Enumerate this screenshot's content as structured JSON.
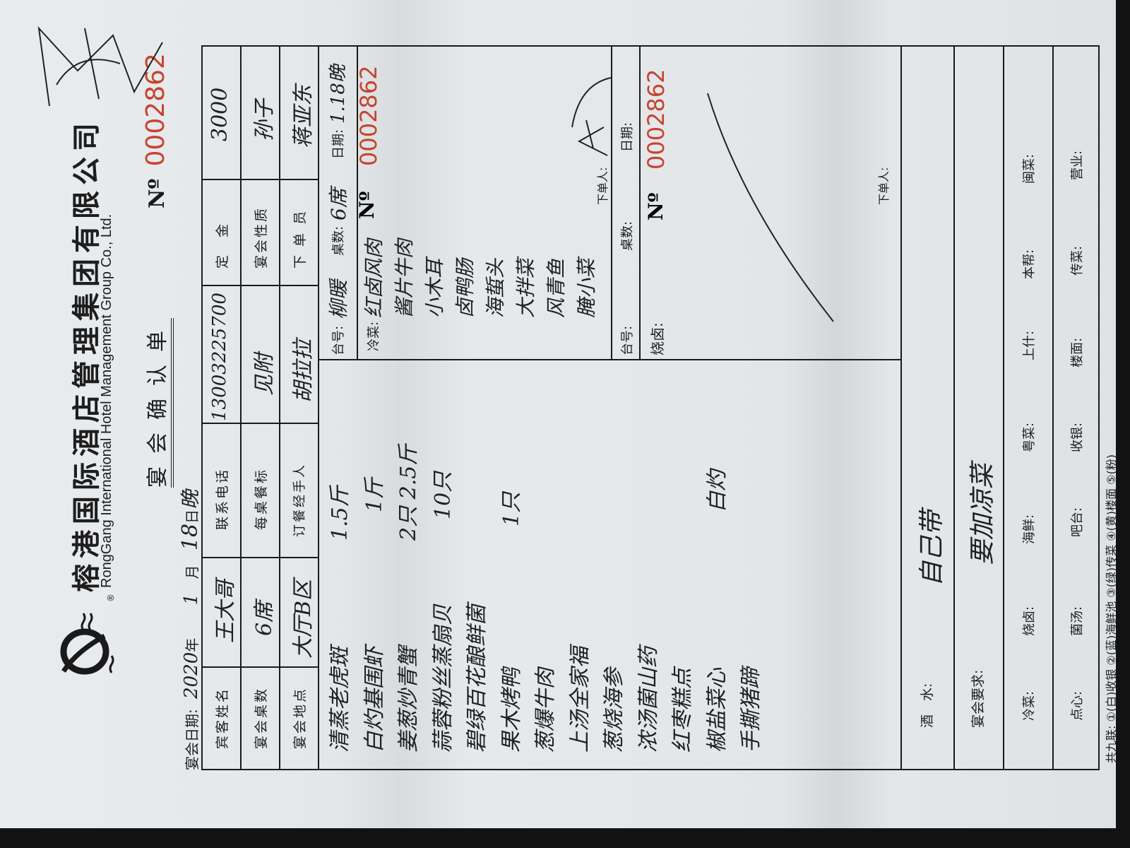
{
  "header": {
    "company_cn": "榕港国际酒店管理集团有限公司",
    "company_en": "RongGang International Hotel Management Group Co., Ltd.",
    "logo_mark": "®",
    "title": "宴会确认单",
    "no_label": "Nº",
    "serial": "0002862"
  },
  "date_line": {
    "label": "宴会日期:",
    "year": "2020",
    "year_unit": "年",
    "month": "1",
    "month_unit": "月",
    "day": "18",
    "day_unit": "日",
    "meal": "晚"
  },
  "info": {
    "guest_name_label": "宾客姓名",
    "guest_name": "王大哥",
    "phone_label": "联系电话",
    "phone": "13003225700",
    "deposit_label": "定　金",
    "deposit": "3000",
    "tables_label": "宴会桌数",
    "tables": "6席",
    "standard_label": "每桌餐标",
    "standard": "见附",
    "nature_label": "宴会性质",
    "nature": "孙子",
    "venue_label": "宴会地点",
    "venue": "大厅B区",
    "handler_label": "订餐经手人",
    "handler": "胡拉拉",
    "clerk_label": "下 单 员",
    "clerk": "蒋亚东"
  },
  "menu": [
    {
      "dish": "清蒸老虎斑",
      "qty": "1.5斤"
    },
    {
      "dish": "白灼基围虾",
      "qty": "1斤"
    },
    {
      "dish": "姜葱炒青蟹",
      "qty": "2只 2.5斤"
    },
    {
      "dish": "蒜蓉粉丝蒸扇贝",
      "qty": "10只"
    },
    {
      "dish": "碧绿百花酿鲜菌",
      "qty": ""
    },
    {
      "dish": "果木烤鸭",
      "qty": "1只"
    },
    {
      "dish": "葱爆牛肉",
      "qty": ""
    },
    {
      "dish": "上汤全家福",
      "qty": ""
    },
    {
      "dish": "葱烧海参",
      "qty": ""
    },
    {
      "dish": "浓汤菌山药",
      "qty": ""
    },
    {
      "dish": "红枣糕点",
      "qty": ""
    },
    {
      "dish": "椒盐菜心",
      "qty": "白灼"
    },
    {
      "dish": "手撕猪蹄",
      "qty": ""
    }
  ],
  "slip1": {
    "table_no_label": "台号:",
    "table_no": "柳暖",
    "count_label": "桌数:",
    "count": "6席",
    "date_label": "日期:",
    "date": "1.18晚",
    "no_label": "Nº",
    "serial": "0002862",
    "section_label": "冷菜:",
    "cold_dishes": [
      "红卤风肉",
      "酱片牛肉",
      "小木耳",
      "卤鸭肠",
      "海蜇头",
      "大拌菜",
      "风青鱼",
      "腌小菜"
    ],
    "orderer_label": "下单人:"
  },
  "slip2": {
    "table_no_label": "台号:",
    "count_label": "桌数:",
    "date_label": "日期:",
    "section_label": "烧卤:",
    "no_label": "Nº",
    "serial": "0002862",
    "orderer_label": "下单人:"
  },
  "bottom": {
    "drinks_label": "酒　水:",
    "drinks": "自己带",
    "requirements_label": "宴会要求:",
    "requirements": "要加凉菜",
    "row1": [
      "冷菜:",
      "烧卤:",
      "海鲜:",
      "粤菜:",
      "上什:",
      "本帮:",
      "闽菜:"
    ],
    "row2": [
      "点心:",
      "菌汤:",
      "吧台:",
      "收银:",
      "楼面:",
      "传菜:",
      "营业:"
    ],
    "footer": "共九联: ①(白)收银 ②(蓝)海鲜池 ③(绿)传菜 ④(黄)楼面 ⑤(粉)"
  },
  "colors": {
    "serial_red": "#c8432e",
    "ink": "#202020",
    "paper": "#e6e9eb"
  }
}
